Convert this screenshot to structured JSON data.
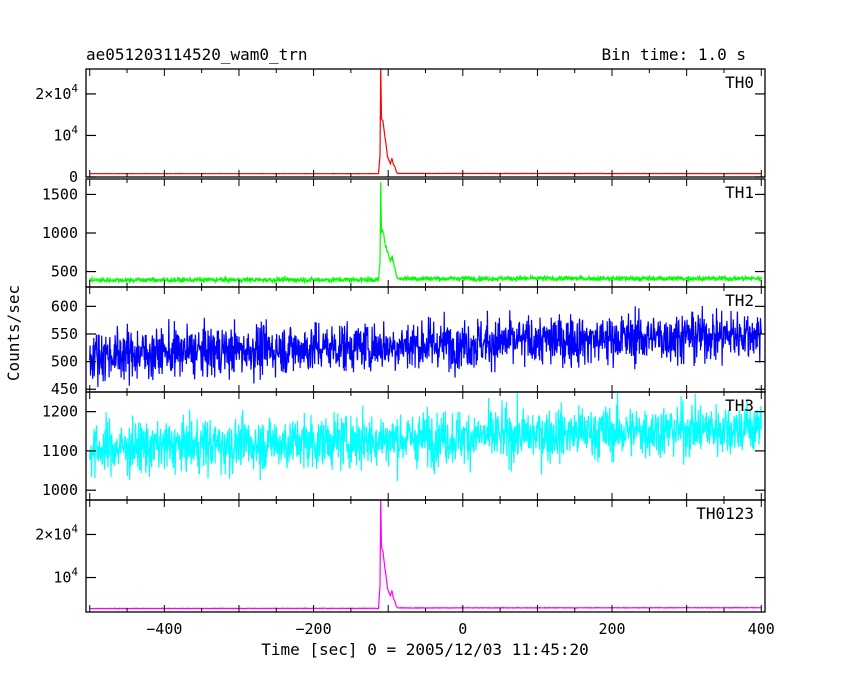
{
  "chart_data": {
    "type": "line",
    "title": "ae051203114520_wam0_trn",
    "subtitle": "Bin time: 1.0 s",
    "xlabel": "Time [sec] 0 = 2005/12/03 11:45:20",
    "ylabel": "Counts/sec",
    "xlim": [
      -505,
      405
    ],
    "x_ticks": [
      -400,
      -200,
      0,
      200,
      400
    ],
    "x_tick_labels": [
      "−400",
      "−200",
      "0",
      "200",
      "400"
    ],
    "grid": false,
    "panels": [
      {
        "name": "TH0",
        "color": "#ff0000",
        "ylim": [
          0,
          26000
        ],
        "y_ticks": [
          0,
          10000,
          20000
        ],
        "y_tick_labels": [
          "0",
          "10^4",
          "2×10^4"
        ],
        "baseline": 800,
        "noise": 20,
        "trend": 0,
        "profile": [
          [
            -500,
            800
          ],
          [
            -113,
            800
          ],
          [
            -111,
            5000
          ],
          [
            -110,
            26500
          ],
          [
            -109,
            14000
          ],
          [
            -107,
            13500
          ],
          [
            -105,
            10500
          ],
          [
            -103,
            8000
          ],
          [
            -101,
            5000
          ],
          [
            -99,
            4000
          ],
          [
            -97,
            3200
          ],
          [
            -95,
            4500
          ],
          [
            -93,
            3000
          ],
          [
            -91,
            2500
          ],
          [
            -89,
            1200
          ],
          [
            -87,
            850
          ],
          [
            400,
            820
          ]
        ]
      },
      {
        "name": "TH1",
        "color": "#00ff00",
        "ylim": [
          300,
          1700
        ],
        "y_ticks": [
          500,
          1000,
          1500
        ],
        "y_tick_labels": [
          "500",
          "1000",
          "1500"
        ],
        "baseline": 390,
        "noise": 22,
        "trend": 30,
        "profile": [
          [
            -500,
            390
          ],
          [
            -113,
            395
          ],
          [
            -111,
            600
          ],
          [
            -110,
            1650
          ],
          [
            -109,
            1000
          ],
          [
            -107,
            1050
          ],
          [
            -105,
            900
          ],
          [
            -103,
            820
          ],
          [
            -101,
            740
          ],
          [
            -99,
            700
          ],
          [
            -97,
            640
          ],
          [
            -95,
            720
          ],
          [
            -93,
            620
          ],
          [
            -91,
            540
          ],
          [
            -89,
            440
          ],
          [
            -87,
            410
          ],
          [
            400,
            410
          ]
        ]
      },
      {
        "name": "TH2",
        "color": "#0000ff",
        "ylim": [
          445,
          635
        ],
        "y_ticks": [
          450,
          500,
          550,
          600
        ],
        "y_tick_labels": [
          "450",
          "500",
          "550",
          "600"
        ],
        "baseline": 512,
        "noise": 32,
        "trend": 38,
        "profile": [
          [
            -500,
            512
          ],
          [
            400,
            550
          ]
        ]
      },
      {
        "name": "TH3",
        "color": "#00ffff",
        "ylim": [
          975,
          1250
        ],
        "y_ticks": [
          1000,
          1100,
          1200
        ],
        "y_tick_labels": [
          "1000",
          "1100",
          "1200"
        ],
        "baseline": 1105,
        "noise": 48,
        "trend": 55,
        "profile": [
          [
            -500,
            1105
          ],
          [
            400,
            1160
          ]
        ]
      },
      {
        "name": "TH0123",
        "color": "#ff00ff",
        "ylim": [
          2000,
          28000
        ],
        "y_ticks": [
          10000,
          20000
        ],
        "y_tick_labels": [
          "10^4",
          "2×10^4"
        ],
        "baseline": 2800,
        "noise": 40,
        "trend": 150,
        "profile": [
          [
            -500,
            2800
          ],
          [
            -113,
            2850
          ],
          [
            -111,
            8000
          ],
          [
            -110,
            28500
          ],
          [
            -109,
            17000
          ],
          [
            -107,
            16000
          ],
          [
            -105,
            13000
          ],
          [
            -103,
            10500
          ],
          [
            -101,
            7500
          ],
          [
            -99,
            6500
          ],
          [
            -97,
            5800
          ],
          [
            -95,
            7000
          ],
          [
            -93,
            5200
          ],
          [
            -91,
            4500
          ],
          [
            -89,
            3300
          ],
          [
            -87,
            2950
          ],
          [
            400,
            3000
          ]
        ]
      }
    ]
  }
}
